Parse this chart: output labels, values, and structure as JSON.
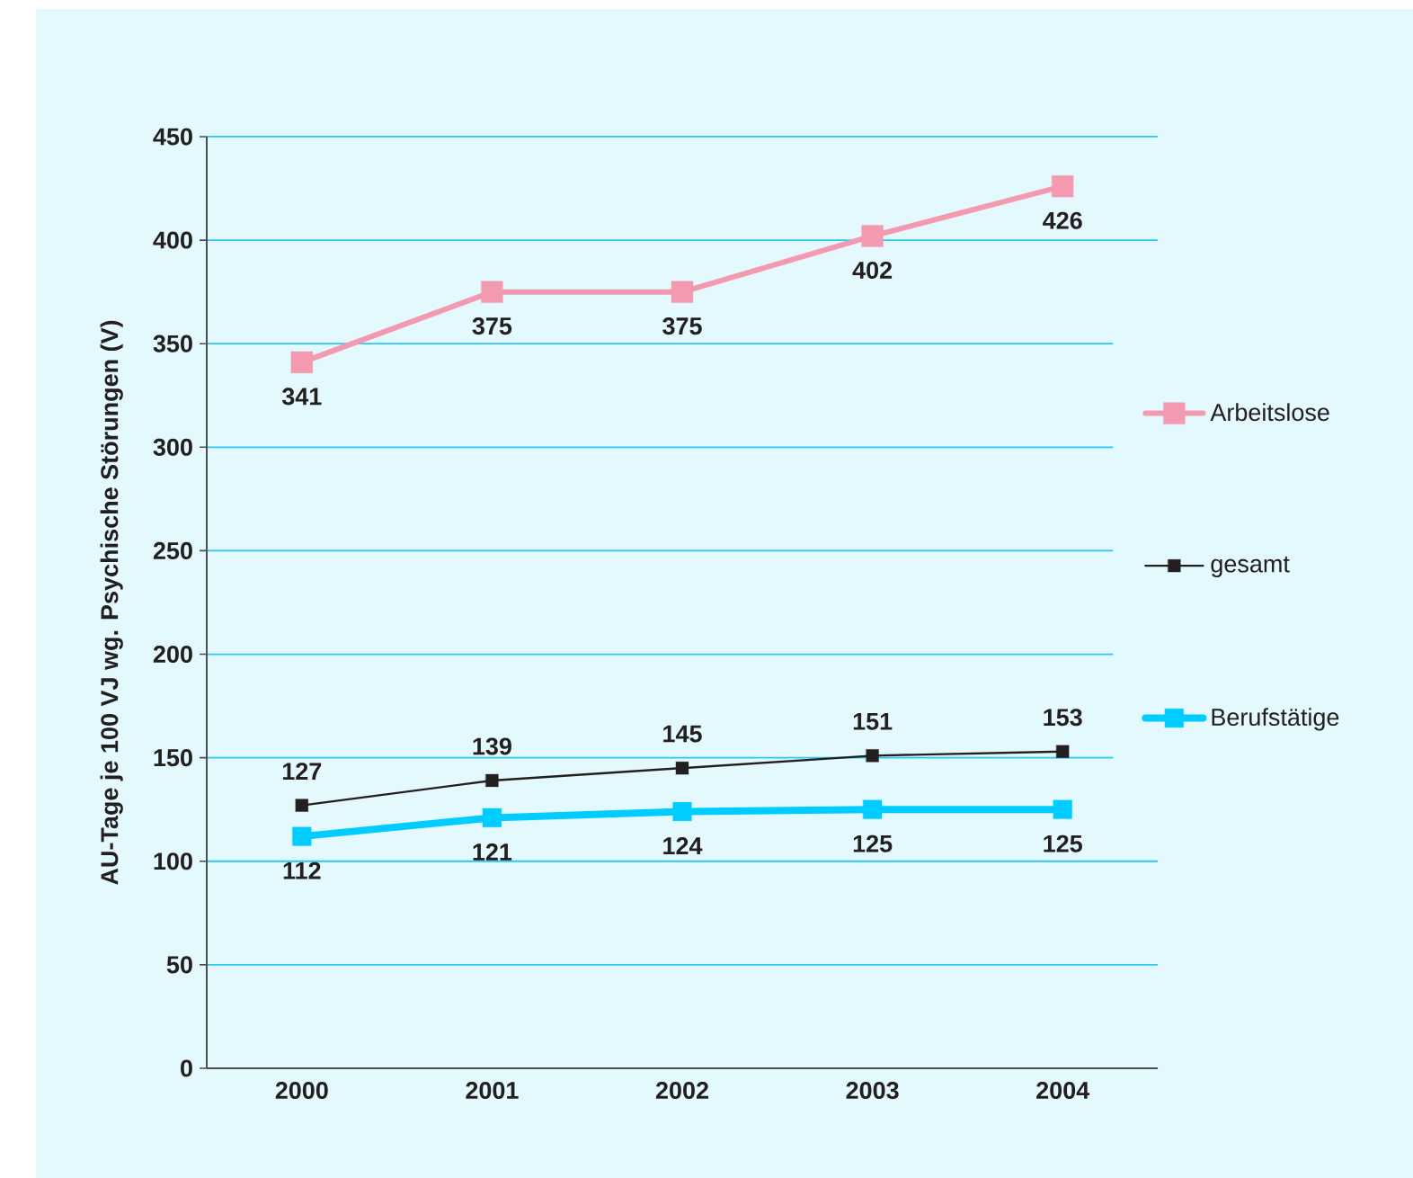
{
  "chart_data": {
    "type": "line",
    "ylabel": "AU-Tage je 100 VJ wg. Psychische Störungen (V)",
    "categories": [
      "2000",
      "2001",
      "2002",
      "2003",
      "2004"
    ],
    "series": [
      {
        "name": "Arbeitslose",
        "color": "#f49ab0",
        "values": [
          341,
          375,
          375,
          402,
          426
        ]
      },
      {
        "name": "gesamt",
        "color": "#231f20",
        "values": [
          127,
          139,
          145,
          151,
          153
        ]
      },
      {
        "name": "Berufstätige",
        "color": "#00ccff",
        "values": [
          112,
          121,
          124,
          125,
          125
        ]
      }
    ],
    "ylim": [
      0,
      450
    ],
    "yticks": [
      0,
      50,
      100,
      150,
      200,
      250,
      300,
      350,
      400,
      450
    ],
    "grid": "y",
    "legend": "right",
    "marker": "square",
    "line_style": "solid",
    "data_labels": true
  }
}
